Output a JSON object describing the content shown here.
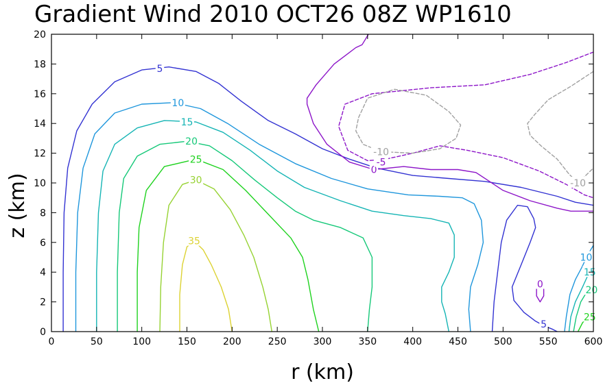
{
  "chart_data": {
    "type": "line",
    "title": "Gradient Wind 2010 OCT26 08Z   WP1610",
    "xlabel": "r (km)",
    "ylabel": "z (km)",
    "xlim": [
      0,
      600
    ],
    "ylim": [
      0,
      20
    ],
    "xticks": [
      0,
      50,
      100,
      150,
      200,
      250,
      300,
      350,
      400,
      450,
      500,
      550,
      600
    ],
    "yticks": [
      0,
      2,
      4,
      6,
      8,
      10,
      12,
      14,
      16,
      18,
      20
    ],
    "xtick_labels": [
      "0",
      "50",
      "100",
      "150",
      "200",
      "250",
      "300",
      "350",
      "400",
      "450",
      "500",
      "550",
      "600"
    ],
    "ytick_labels": [
      "0",
      "2",
      "4",
      "6",
      "8",
      "10",
      "12",
      "14",
      "16",
      "18",
      "20"
    ],
    "grid": false,
    "series": [
      {
        "name": "5",
        "level": 5,
        "color": "#3232d2",
        "dashed": false,
        "label_at": [
          120,
          17.7
        ],
        "points": [
          [
            13,
            0
          ],
          [
            13,
            4
          ],
          [
            14,
            8
          ],
          [
            18,
            11
          ],
          [
            28,
            13.5
          ],
          [
            45,
            15.3
          ],
          [
            70,
            16.8
          ],
          [
            100,
            17.6
          ],
          [
            130,
            17.8
          ],
          [
            160,
            17.5
          ],
          [
            185,
            16.7
          ],
          [
            210,
            15.5
          ],
          [
            240,
            14.2
          ],
          [
            270,
            13.3
          ],
          [
            300,
            12.3
          ],
          [
            330,
            11.6
          ],
          [
            360,
            11
          ],
          [
            400,
            10.5
          ],
          [
            440,
            10.3
          ],
          [
            480,
            10.1
          ],
          [
            520,
            9.7
          ],
          [
            560,
            9.1
          ],
          [
            580,
            8.7
          ],
          [
            600,
            8.5
          ]
        ]
      },
      {
        "name": "5",
        "level": 5,
        "color": "#3232d2",
        "dashed": false,
        "label_at": [
          545,
          0.5
        ],
        "points": [
          [
            488,
            0
          ],
          [
            490,
            2
          ],
          [
            494,
            4
          ],
          [
            498,
            6
          ],
          [
            504,
            7.5
          ],
          [
            516,
            8.5
          ],
          [
            527,
            8.4
          ],
          [
            534,
            7.6
          ],
          [
            536,
            7
          ],
          [
            530,
            6
          ],
          [
            520,
            4.5
          ],
          [
            510,
            3
          ],
          [
            512,
            2.1
          ],
          [
            523,
            1.3
          ],
          [
            536,
            0.7
          ],
          [
            545,
            0.4
          ],
          [
            555,
            0.15
          ],
          [
            560,
            0
          ]
        ]
      },
      {
        "name": "10",
        "level": 10,
        "color": "#1e96dc",
        "dashed": false,
        "label_at": [
          140,
          15.4
        ],
        "points": [
          [
            27,
            0
          ],
          [
            27,
            4
          ],
          [
            29,
            8
          ],
          [
            35,
            11
          ],
          [
            48,
            13.3
          ],
          [
            70,
            14.7
          ],
          [
            100,
            15.3
          ],
          [
            135,
            15.4
          ],
          [
            165,
            15
          ],
          [
            195,
            14
          ],
          [
            230,
            12.6
          ],
          [
            270,
            11.3
          ],
          [
            310,
            10.3
          ],
          [
            350,
            9.6
          ],
          [
            395,
            9.2
          ],
          [
            430,
            9.1
          ],
          [
            455,
            9
          ],
          [
            468,
            8.6
          ],
          [
            476,
            7.5
          ],
          [
            478,
            6
          ],
          [
            472,
            4.5
          ],
          [
            464,
            3
          ],
          [
            462,
            1.5
          ],
          [
            464,
            0
          ]
        ]
      },
      {
        "name": "10",
        "level": 10,
        "color": "#1e96dc",
        "dashed": false,
        "label_at": [
          592,
          5
        ],
        "points": [
          [
            568,
            0
          ],
          [
            570,
            1
          ],
          [
            574,
            2.5
          ],
          [
            580,
            3.5
          ],
          [
            587,
            4.3
          ],
          [
            594,
            5.2
          ],
          [
            600,
            5.8
          ]
        ]
      },
      {
        "name": "15",
        "level": 15,
        "color": "#14b4b4",
        "dashed": false,
        "label_at": [
          150,
          14.1
        ],
        "points": [
          [
            50,
            0
          ],
          [
            50,
            4
          ],
          [
            52,
            8
          ],
          [
            57,
            10.8
          ],
          [
            70,
            12.6
          ],
          [
            95,
            13.7
          ],
          [
            125,
            14.2
          ],
          [
            160,
            14.1
          ],
          [
            190,
            13.4
          ],
          [
            220,
            12.2
          ],
          [
            250,
            10.8
          ],
          [
            280,
            9.7
          ],
          [
            320,
            8.8
          ],
          [
            355,
            8.1
          ],
          [
            390,
            7.8
          ],
          [
            420,
            7.6
          ],
          [
            440,
            7.3
          ],
          [
            446,
            6.5
          ],
          [
            446,
            5
          ],
          [
            440,
            4
          ],
          [
            432,
            3
          ],
          [
            432,
            2
          ],
          [
            436,
            1.2
          ],
          [
            440,
            0
          ]
        ]
      },
      {
        "name": "15",
        "level": 15,
        "color": "#14b4b4",
        "dashed": false,
        "label_at": [
          596,
          4
        ],
        "points": [
          [
            573,
            0
          ],
          [
            575,
            1
          ],
          [
            580,
            2
          ],
          [
            588,
            3
          ],
          [
            594,
            3.8
          ],
          [
            600,
            4.2
          ]
        ]
      },
      {
        "name": "20",
        "level": 20,
        "color": "#14c878",
        "dashed": false,
        "label_at": [
          155,
          12.8
        ],
        "points": [
          [
            73,
            0
          ],
          [
            73,
            4
          ],
          [
            75,
            8
          ],
          [
            80,
            10.3
          ],
          [
            95,
            11.8
          ],
          [
            120,
            12.6
          ],
          [
            150,
            12.8
          ],
          [
            175,
            12.5
          ],
          [
            200,
            11.5
          ],
          [
            225,
            10.2
          ],
          [
            250,
            9
          ],
          [
            270,
            8.1
          ],
          [
            290,
            7.5
          ],
          [
            320,
            7
          ],
          [
            345,
            6.3
          ],
          [
            355,
            5
          ],
          [
            355,
            3
          ],
          [
            352,
            1.5
          ],
          [
            350,
            0
          ]
        ]
      },
      {
        "name": "20",
        "level": 20,
        "color": "#14c878",
        "dashed": false,
        "label_at": [
          598,
          2.8
        ],
        "points": [
          [
            578,
            0
          ],
          [
            581,
            1
          ],
          [
            586,
            2
          ],
          [
            593,
            2.7
          ],
          [
            600,
            3.1
          ]
        ]
      },
      {
        "name": "25",
        "level": 25,
        "color": "#1ed21e",
        "dashed": false,
        "label_at": [
          160,
          11.6
        ],
        "points": [
          [
            95,
            0
          ],
          [
            95,
            4
          ],
          [
            97,
            7
          ],
          [
            105,
            9.5
          ],
          [
            125,
            11.1
          ],
          [
            160,
            11.6
          ],
          [
            190,
            10.9
          ],
          [
            215,
            9.5
          ],
          [
            240,
            7.9
          ],
          [
            265,
            6.3
          ],
          [
            278,
            5
          ],
          [
            284,
            3.5
          ],
          [
            290,
            1.5
          ],
          [
            296,
            0
          ]
        ]
      },
      {
        "name": "25",
        "level": 25,
        "color": "#1ed21e",
        "dashed": false,
        "label_at": [
          596,
          1
        ],
        "points": [
          [
            583,
            0
          ],
          [
            588,
            0.6
          ],
          [
            594,
            1
          ],
          [
            600,
            1.4
          ]
        ]
      },
      {
        "name": "30",
        "level": 30,
        "color": "#96d232",
        "dashed": false,
        "label_at": [
          160,
          10.2
        ],
        "points": [
          [
            120,
            0
          ],
          [
            121,
            3
          ],
          [
            124,
            6
          ],
          [
            130,
            8.5
          ],
          [
            145,
            9.9
          ],
          [
            160,
            10.2
          ],
          [
            180,
            9.6
          ],
          [
            198,
            8.2
          ],
          [
            213,
            6.5
          ],
          [
            224,
            5
          ],
          [
            234,
            3
          ],
          [
            240,
            1.5
          ],
          [
            244,
            0
          ]
        ]
      },
      {
        "name": "35",
        "level": 35,
        "color": "#dcd232",
        "dashed": false,
        "label_at": [
          158,
          6.1
        ],
        "points": [
          [
            142,
            0
          ],
          [
            142,
            2.5
          ],
          [
            145,
            4.5
          ],
          [
            150,
            5.7
          ],
          [
            158,
            6.1
          ],
          [
            168,
            5.5
          ],
          [
            177,
            4.5
          ],
          [
            188,
            3
          ],
          [
            196,
            1.5
          ],
          [
            200,
            0
          ]
        ]
      },
      {
        "name": "0",
        "level": 0,
        "color": "#8c14c8",
        "dashed": false,
        "label_at": [
          357,
          10.9
        ],
        "points": [
          [
            351,
            20
          ],
          [
            344,
            19.3
          ],
          [
            337,
            19.1
          ],
          [
            313,
            18
          ],
          [
            293,
            16.6
          ],
          [
            283,
            15.7
          ],
          [
            283,
            15.3
          ],
          [
            290,
            14
          ],
          [
            305,
            12.6
          ],
          [
            330,
            11.4
          ],
          [
            357,
            10.9
          ],
          [
            390,
            11.1
          ],
          [
            420,
            10.9
          ],
          [
            450,
            10.9
          ],
          [
            470,
            10.7
          ],
          [
            485,
            10.1
          ],
          [
            500,
            9.5
          ],
          [
            530,
            8.8
          ],
          [
            560,
            8.3
          ],
          [
            575,
            8.1
          ],
          [
            600,
            8.1
          ]
        ]
      },
      {
        "name": "0",
        "level": 0,
        "color": "#8c14c8",
        "dashed": false,
        "label_at": [
          541,
          3.2
        ],
        "points": [
          [
            537,
            3.2
          ],
          [
            537,
            2.4
          ],
          [
            541,
            2
          ],
          [
            545,
            2.4
          ],
          [
            545,
            3.2
          ]
        ]
      },
      {
        "name": "-5",
        "level": -5,
        "color": "#8c14c8",
        "dashed": true,
        "label_at": [
          365,
          11.4
        ],
        "points": [
          [
            600,
            18.8
          ],
          [
            570,
            18.1
          ],
          [
            530,
            17.3
          ],
          [
            480,
            16.6
          ],
          [
            420,
            16.4
          ],
          [
            355,
            16
          ],
          [
            325,
            15.3
          ],
          [
            318,
            13.8
          ],
          [
            328,
            12.2
          ],
          [
            350,
            11.5
          ],
          [
            370,
            11.6
          ],
          [
            400,
            12
          ],
          [
            430,
            12.5
          ],
          [
            460,
            12.2
          ],
          [
            500,
            11.7
          ],
          [
            540,
            10.8
          ],
          [
            570,
            9.9
          ],
          [
            590,
            9.2
          ],
          [
            600,
            9
          ]
        ]
      },
      {
        "name": "-10",
        "level": -10,
        "color": "#a0a0a0",
        "dashed": true,
        "label_at": [
          365,
          12.1
        ],
        "points": [
          [
            340,
            14.4
          ],
          [
            350,
            15.7
          ],
          [
            380,
            16.3
          ],
          [
            415,
            15.9
          ],
          [
            440,
            14.8
          ],
          [
            453,
            13.9
          ],
          [
            448,
            13
          ],
          [
            430,
            12.3
          ],
          [
            400,
            12
          ],
          [
            365,
            12.1
          ],
          [
            345,
            12.6
          ],
          [
            337,
            13.5
          ],
          [
            340,
            14.4
          ]
        ]
      },
      {
        "name": "-10",
        "level": -10,
        "color": "#a0a0a0",
        "dashed": true,
        "label_at": [
          583,
          10
        ],
        "points": [
          [
            600,
            17.5
          ],
          [
            575,
            16.5
          ],
          [
            550,
            15.6
          ],
          [
            535,
            14.6
          ],
          [
            527,
            14
          ],
          [
            530,
            13.2
          ],
          [
            542,
            12.5
          ],
          [
            560,
            11.6
          ],
          [
            573,
            10.6
          ],
          [
            583,
            10
          ],
          [
            600,
            11
          ]
        ]
      }
    ]
  }
}
